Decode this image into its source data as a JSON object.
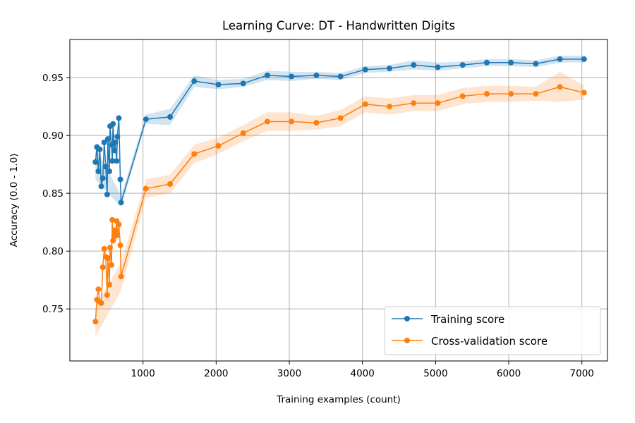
{
  "chart_data": {
    "type": "line",
    "title": "Learning Curve: DT - Handwritten Digits",
    "xlabel": "Training examples (count)",
    "ylabel": "Accuracy (0.0 - 1.0)",
    "xlim": [
      0,
      7350
    ],
    "ylim": [
      0.705,
      0.983
    ],
    "xticks": [
      1000,
      2000,
      3000,
      4000,
      5000,
      6000,
      7000
    ],
    "yticks": [
      0.75,
      0.8,
      0.85,
      0.9,
      0.95
    ],
    "ytick_labels": [
      "0.75",
      "0.80",
      "0.85",
      "0.90",
      "0.95"
    ],
    "grid": true,
    "legend_position": "bottom-right",
    "series": [
      {
        "name": "Training score",
        "color": "#1f77b4",
        "band_color": "#1f77b4",
        "points": [
          [
            350,
            0.877
          ],
          [
            370,
            0.89
          ],
          [
            390,
            0.869
          ],
          [
            410,
            0.888
          ],
          [
            430,
            0.856
          ],
          [
            450,
            0.863
          ],
          [
            470,
            0.894
          ],
          [
            490,
            0.873
          ],
          [
            510,
            0.849
          ],
          [
            520,
            0.897
          ],
          [
            540,
            0.869
          ],
          [
            550,
            0.908
          ],
          [
            570,
            0.892
          ],
          [
            580,
            0.878
          ],
          [
            590,
            0.91
          ],
          [
            610,
            0.887
          ],
          [
            620,
            0.894
          ],
          [
            640,
            0.878
          ],
          [
            650,
            0.899
          ],
          [
            670,
            0.915
          ],
          [
            690,
            0.862
          ],
          [
            700,
            0.842
          ],
          [
            1040,
            0.914
          ],
          [
            1370,
            0.916
          ],
          [
            1700,
            0.947
          ],
          [
            2030,
            0.944
          ],
          [
            2370,
            0.945
          ],
          [
            2700,
            0.952
          ],
          [
            3030,
            0.951
          ],
          [
            3370,
            0.952
          ],
          [
            3700,
            0.951
          ],
          [
            4040,
            0.957
          ],
          [
            4370,
            0.958
          ],
          [
            4700,
            0.961
          ],
          [
            5030,
            0.959
          ],
          [
            5370,
            0.961
          ],
          [
            5700,
            0.963
          ],
          [
            6030,
            0.963
          ],
          [
            6370,
            0.962
          ],
          [
            6700,
            0.966
          ],
          [
            7030,
            0.966
          ]
        ],
        "band": [
          [
            350,
            0.862,
            0.89
          ],
          [
            700,
            0.838,
            0.848
          ],
          [
            1040,
            0.91,
            0.918
          ],
          [
            1370,
            0.909,
            0.923
          ],
          [
            1700,
            0.942,
            0.952
          ],
          [
            2030,
            0.94,
            0.948
          ],
          [
            2370,
            0.942,
            0.949
          ],
          [
            2700,
            0.948,
            0.956
          ],
          [
            3030,
            0.947,
            0.955
          ],
          [
            3370,
            0.949,
            0.955
          ],
          [
            3700,
            0.948,
            0.954
          ],
          [
            4040,
            0.954,
            0.96
          ],
          [
            4370,
            0.955,
            0.961
          ],
          [
            4700,
            0.957,
            0.965
          ],
          [
            5030,
            0.956,
            0.963
          ],
          [
            5370,
            0.958,
            0.964
          ],
          [
            5700,
            0.96,
            0.966
          ],
          [
            6030,
            0.96,
            0.966
          ],
          [
            6370,
            0.959,
            0.965
          ],
          [
            6700,
            0.963,
            0.969
          ],
          [
            7030,
            0.963,
            0.969
          ]
        ]
      },
      {
        "name": "Cross-validation score",
        "color": "#ff7f0e",
        "band_color": "#ff7f0e",
        "points": [
          [
            350,
            0.739
          ],
          [
            370,
            0.758
          ],
          [
            390,
            0.767
          ],
          [
            410,
            0.756
          ],
          [
            430,
            0.755
          ],
          [
            450,
            0.786
          ],
          [
            470,
            0.802
          ],
          [
            490,
            0.795
          ],
          [
            510,
            0.762
          ],
          [
            520,
            0.794
          ],
          [
            540,
            0.771
          ],
          [
            550,
            0.803
          ],
          [
            570,
            0.788
          ],
          [
            580,
            0.827
          ],
          [
            590,
            0.809
          ],
          [
            610,
            0.818
          ],
          [
            620,
            0.813
          ],
          [
            640,
            0.826
          ],
          [
            650,
            0.814
          ],
          [
            670,
            0.823
          ],
          [
            690,
            0.805
          ],
          [
            700,
            0.778
          ],
          [
            1040,
            0.854
          ],
          [
            1370,
            0.858
          ],
          [
            1700,
            0.884
          ],
          [
            2030,
            0.891
          ],
          [
            2370,
            0.902
          ],
          [
            2700,
            0.912
          ],
          [
            3030,
            0.912
          ],
          [
            3370,
            0.911
          ],
          [
            3700,
            0.915
          ],
          [
            4040,
            0.927
          ],
          [
            4370,
            0.925
          ],
          [
            4700,
            0.928
          ],
          [
            5030,
            0.928
          ],
          [
            5370,
            0.934
          ],
          [
            5700,
            0.936
          ],
          [
            6030,
            0.936
          ],
          [
            6370,
            0.936
          ],
          [
            6700,
            0.942
          ],
          [
            7030,
            0.937
          ]
        ],
        "band": [
          [
            350,
            0.726,
            0.752
          ],
          [
            700,
            0.766,
            0.79
          ],
          [
            1040,
            0.846,
            0.862
          ],
          [
            1370,
            0.85,
            0.866
          ],
          [
            1700,
            0.876,
            0.892
          ],
          [
            2030,
            0.884,
            0.898
          ],
          [
            2370,
            0.895,
            0.909
          ],
          [
            2700,
            0.904,
            0.92
          ],
          [
            3030,
            0.904,
            0.92
          ],
          [
            3370,
            0.905,
            0.917
          ],
          [
            3700,
            0.908,
            0.922
          ],
          [
            4040,
            0.92,
            0.934
          ],
          [
            4370,
            0.918,
            0.932
          ],
          [
            4700,
            0.921,
            0.935
          ],
          [
            5030,
            0.921,
            0.935
          ],
          [
            5370,
            0.927,
            0.941
          ],
          [
            5700,
            0.929,
            0.943
          ],
          [
            6030,
            0.929,
            0.943
          ],
          [
            6370,
            0.93,
            0.942
          ],
          [
            6700,
            0.929,
            0.955
          ],
          [
            7030,
            0.931,
            0.943
          ]
        ]
      }
    ]
  }
}
